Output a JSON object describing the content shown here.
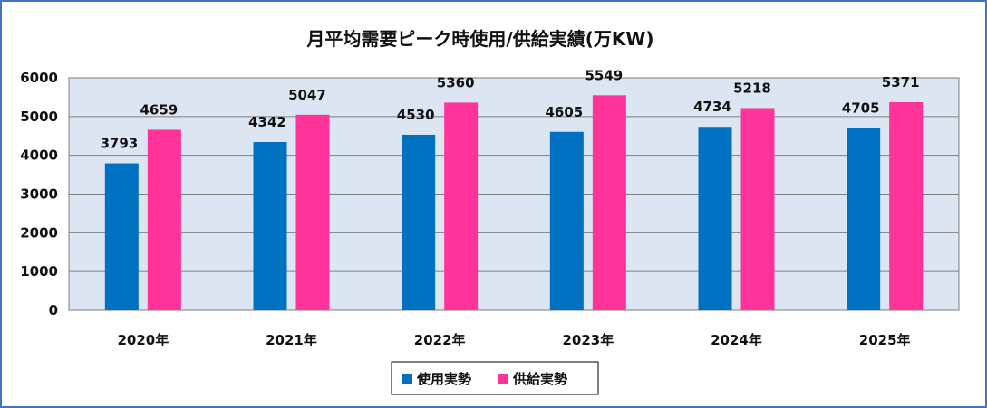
{
  "chart_data": {
    "type": "bar",
    "title": "月平均需要ピーク時使用/供給実績(万KW)",
    "categories": [
      "2020年",
      "2021年",
      "2022年",
      "2023年",
      "2024年",
      "2025年"
    ],
    "series": [
      {
        "name": "使用実勢",
        "values": [
          3793,
          4342,
          4530,
          4605,
          4734,
          4705
        ],
        "color": "#0070C0"
      },
      {
        "name": "供給実勢",
        "values": [
          4659,
          5047,
          5360,
          5549,
          5218,
          5371
        ],
        "color": "#FF3399"
      }
    ],
    "ylim": [
      0,
      6000
    ],
    "yticks": [
      0,
      1000,
      2000,
      3000,
      4000,
      5000,
      6000
    ],
    "grid": true,
    "legend": "bottom",
    "colors": {
      "frame": "#4472C4",
      "plot_background": "#DCE6F2",
      "gridline": "#7F7F7F"
    }
  }
}
